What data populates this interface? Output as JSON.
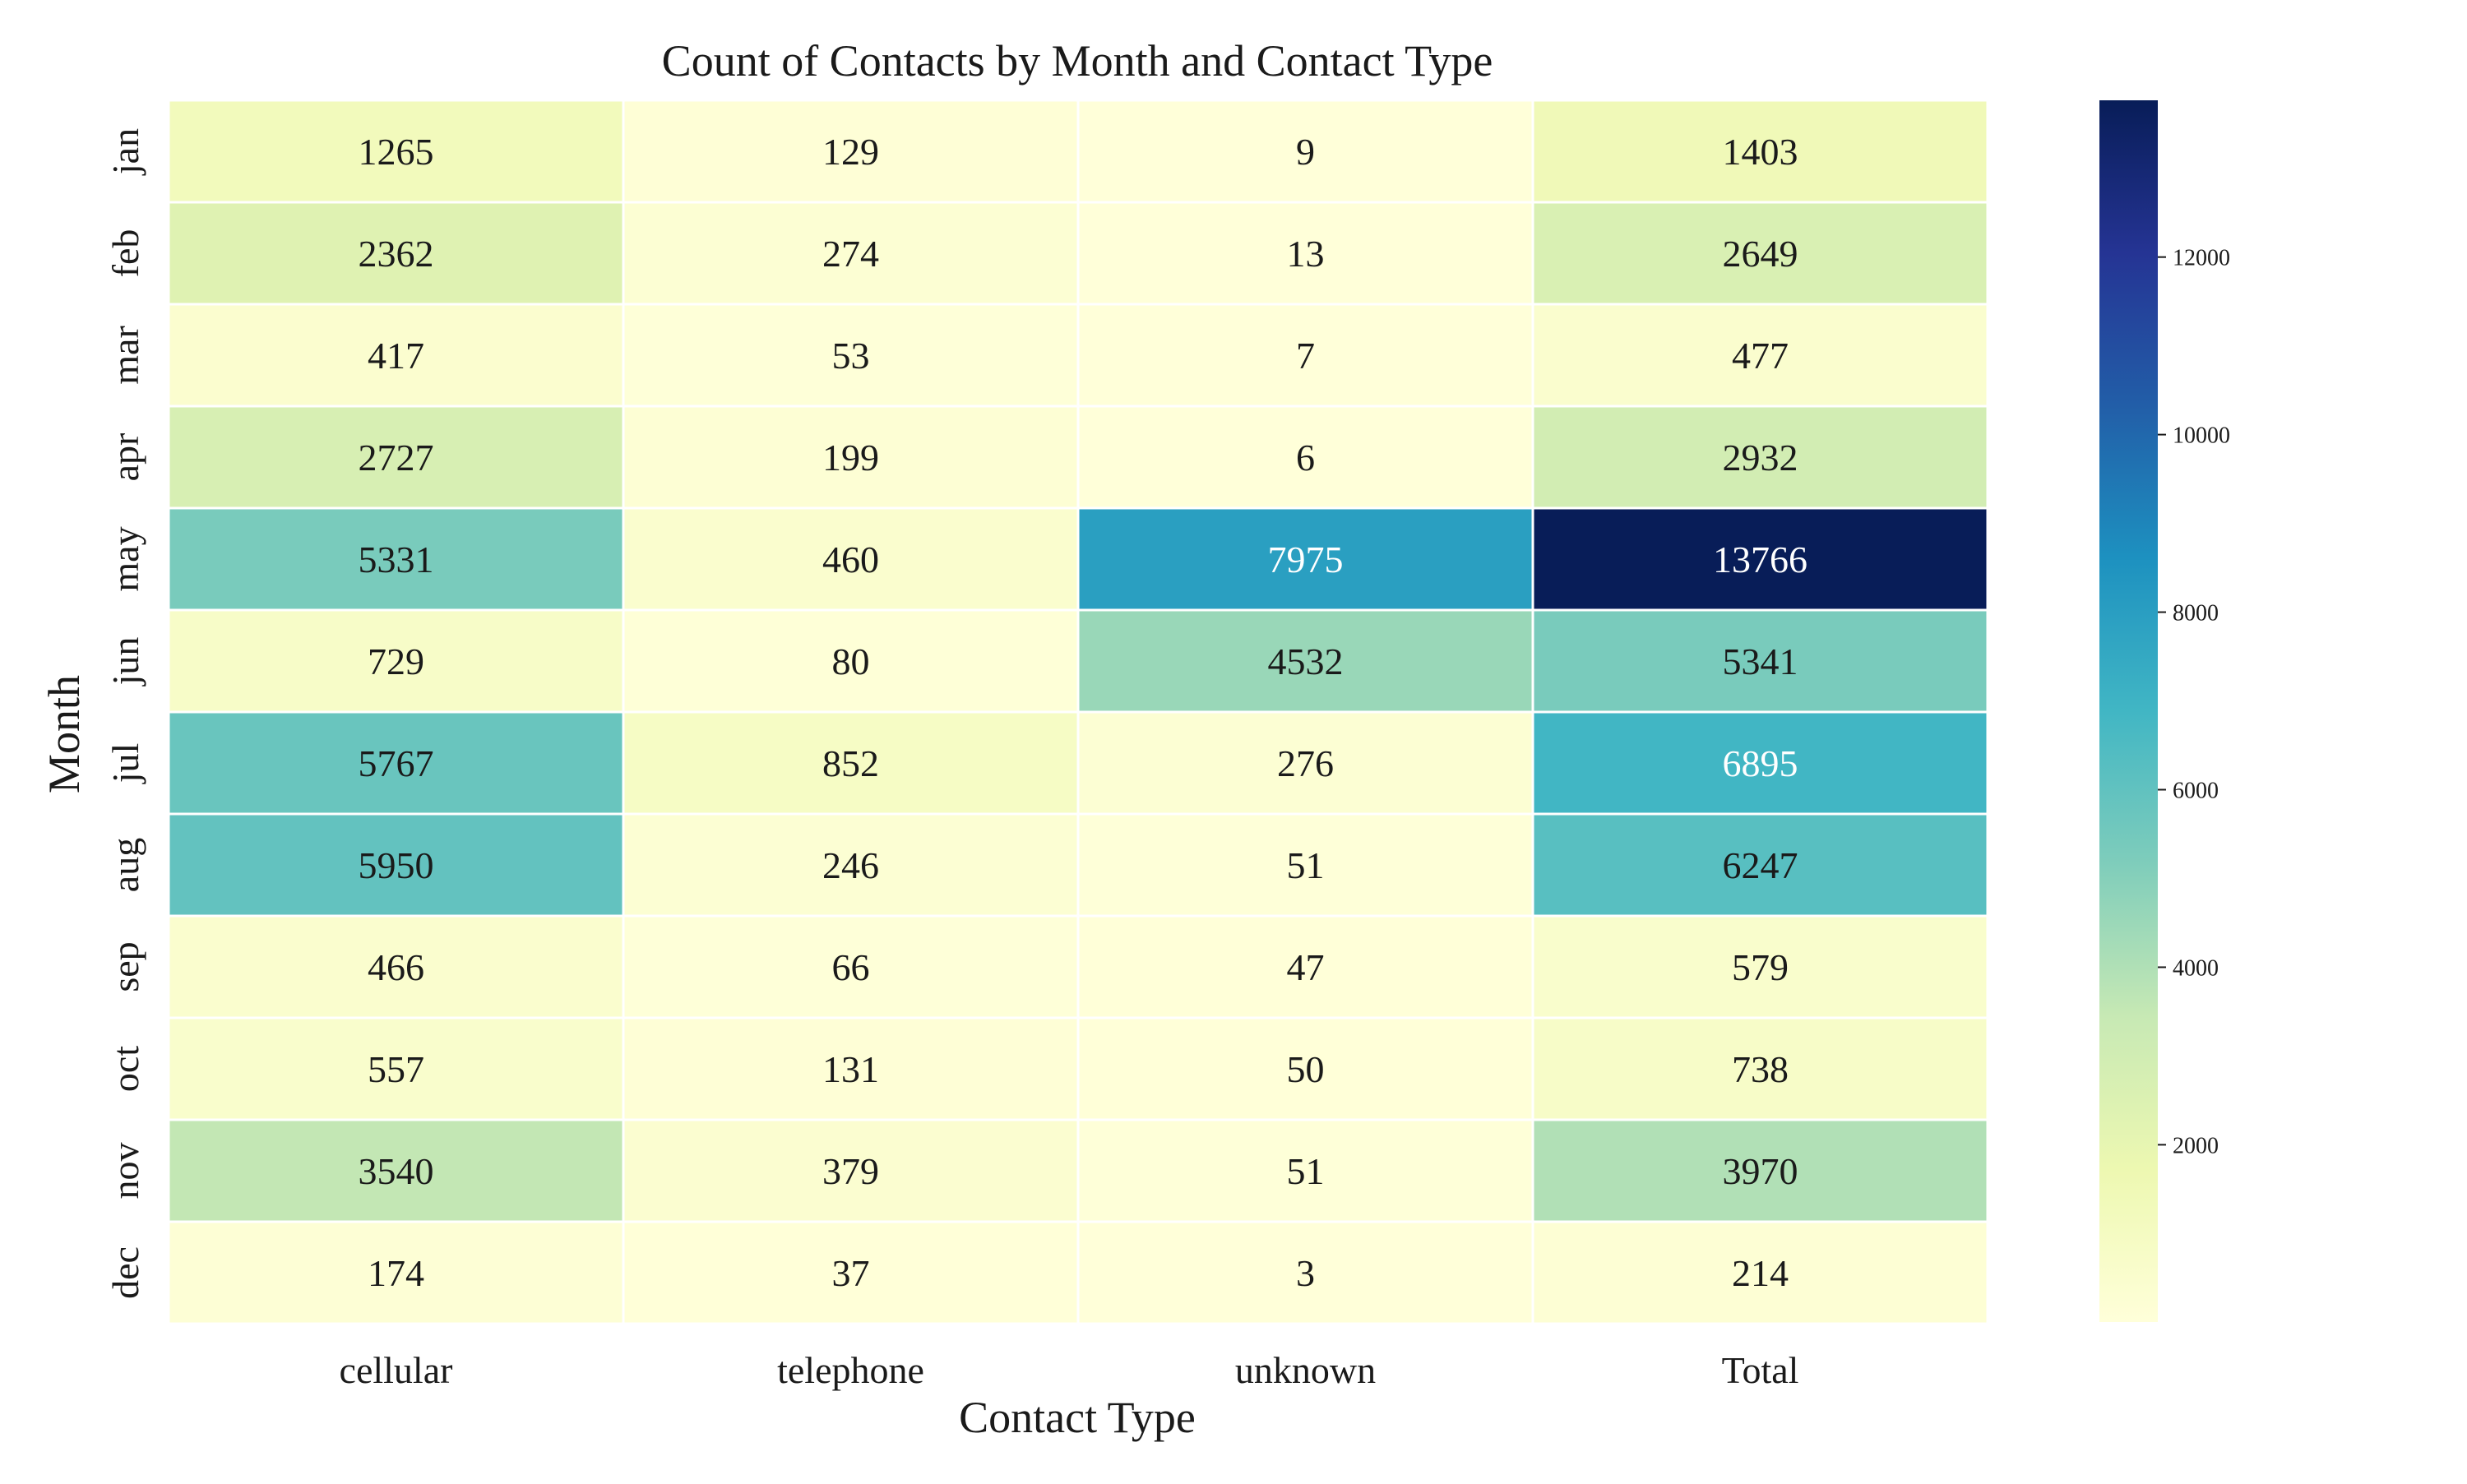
{
  "chart_data": {
    "type": "heatmap",
    "title": "Count of Contacts by Month and Contact Type",
    "xlabel": "Contact Type",
    "ylabel": "Month",
    "columns": [
      "cellular",
      "telephone",
      "unknown",
      "Total"
    ],
    "rows": [
      "jan",
      "feb",
      "mar",
      "apr",
      "may",
      "jun",
      "jul",
      "aug",
      "sep",
      "oct",
      "nov",
      "dec"
    ],
    "values": [
      [
        1265,
        129,
        9,
        1403
      ],
      [
        2362,
        274,
        13,
        2649
      ],
      [
        417,
        53,
        7,
        477
      ],
      [
        2727,
        199,
        6,
        2932
      ],
      [
        5331,
        460,
        7975,
        13766
      ],
      [
        729,
        80,
        4532,
        5341
      ],
      [
        5767,
        852,
        276,
        6895
      ],
      [
        5950,
        246,
        51,
        6247
      ],
      [
        466,
        66,
        47,
        579
      ],
      [
        557,
        131,
        50,
        738
      ],
      [
        3540,
        379,
        51,
        3970
      ],
      [
        174,
        37,
        3,
        214
      ]
    ],
    "colorbar": {
      "min": 3,
      "max": 13766,
      "ticks": [
        "2000",
        "4000",
        "6000",
        "8000",
        "10000",
        "12000"
      ],
      "colormap": "YlGnBu",
      "stops": [
        "#ffffd9",
        "#edf8b1",
        "#c7e9b4",
        "#7fcdbb",
        "#41b6c4",
        "#1d91c0",
        "#225ea8",
        "#253494",
        "#081d58"
      ]
    },
    "grid": false
  }
}
